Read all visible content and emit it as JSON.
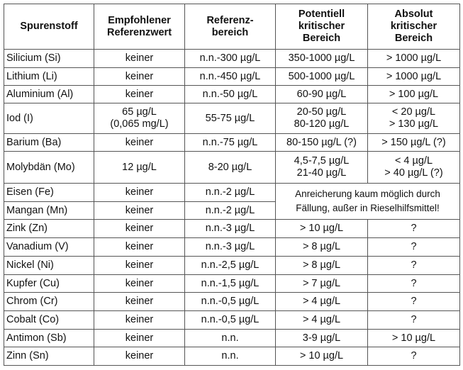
{
  "headers": [
    "Spurenstoff",
    "Empfohlener\nReferenzwert",
    "Referenz-\nbereich",
    "Potentiell\nkritischer\nBereich",
    "Absolut\nkritischer\nBereich"
  ],
  "rows": [
    {
      "element": "Silicium (Si)",
      "empfohlen": "keiner",
      "referenz": "n.n.-300 µg/L",
      "potentiell": "350-1000 µg/L",
      "absolut": "> 1000 µg/L"
    },
    {
      "element": "Lithium (Li)",
      "empfohlen": "keiner",
      "referenz": "n.n.-450 µg/L",
      "potentiell": "500-1000 µg/L",
      "absolut": "> 1000 µg/L"
    },
    {
      "element": "Aluminium (Al)",
      "empfohlen": "keiner",
      "referenz": "n.n.-50 µg/L",
      "potentiell": "60-90 µg/L",
      "absolut": "> 100 µg/L"
    },
    {
      "element": "Iod (I)",
      "empfohlen": "65 µg/L\n(0,065 mg/L)",
      "referenz": "55-75 µg/L",
      "potentiell": "20-50 µg/L\n80-120 µg/L",
      "absolut": "< 20 µg/L\n> 130 µg/L"
    },
    {
      "element": "Barium (Ba)",
      "empfohlen": "keiner",
      "referenz": "n.n.-75 µg/L",
      "potentiell": "80-150 µg/L (?)",
      "absolut": "> 150 µg/L (?)"
    },
    {
      "element": "Molybdän (Mo)",
      "empfohlen": "12 µg/L",
      "referenz": "8-20 µg/L",
      "potentiell": "4,5-7,5 µg/L\n21-40 µg/L",
      "absolut": "< 4 µg/L\n> 40 µg/L (?)"
    },
    {
      "element": "Eisen (Fe)",
      "empfohlen": "keiner",
      "referenz": "n.n.-2 µg/L",
      "note": "Anreicherung kaum möglich durch\nFällung, außer in Rieselhilfsmittel!"
    },
    {
      "element": "Mangan (Mn)",
      "empfohlen": "keiner",
      "referenz": "n.n.-2 µg/L"
    },
    {
      "element": "Zink (Zn)",
      "empfohlen": "keiner",
      "referenz": "n.n.-3 µg/L",
      "potentiell": "> 10 µg/L",
      "absolut": "?"
    },
    {
      "element": "Vanadium (V)",
      "empfohlen": "keiner",
      "referenz": "n.n.-3 µg/L",
      "potentiell": "> 8 µg/L",
      "absolut": "?"
    },
    {
      "element": "Nickel (Ni)",
      "empfohlen": "keiner",
      "referenz": "n.n.-2,5 µg/L",
      "potentiell": "> 8 µg/L",
      "absolut": "?"
    },
    {
      "element": "Kupfer (Cu)",
      "empfohlen": "keiner",
      "referenz": "n.n.-1,5 µg/L",
      "potentiell": "> 7 µg/L",
      "absolut": "?"
    },
    {
      "element": "Chrom (Cr)",
      "empfohlen": "keiner",
      "referenz": "n.n.-0,5 µg/L",
      "potentiell": "> 4 µg/L",
      "absolut": "?"
    },
    {
      "element": "Cobalt (Co)",
      "empfohlen": "keiner",
      "referenz": "n.n.-0,5 µg/L",
      "potentiell": "> 4 µg/L",
      "absolut": "?"
    },
    {
      "element": "Antimon (Sb)",
      "empfohlen": "keiner",
      "referenz": "n.n.",
      "potentiell": "3-9 µg/L",
      "absolut": "> 10 µg/L"
    },
    {
      "element": "Zinn (Sn)",
      "empfohlen": "keiner",
      "referenz": "n.n.",
      "potentiell": "> 10 µg/L",
      "absolut": "?"
    }
  ]
}
